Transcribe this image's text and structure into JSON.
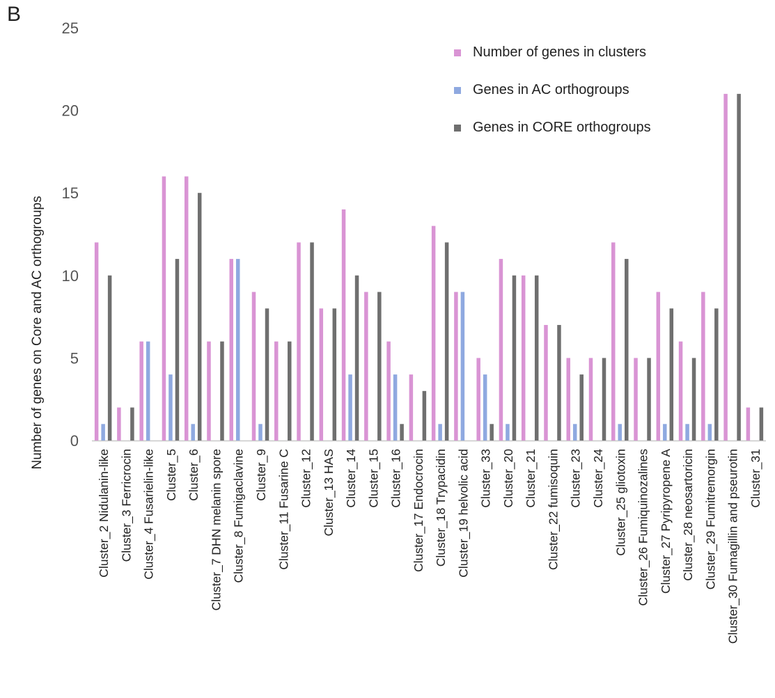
{
  "panel_label": "B",
  "colors": {
    "pink": "#d994d4",
    "blue": "#8fa9e0",
    "gray": "#6f6f6f",
    "axis": "#c8c8c8"
  },
  "chart_data": {
    "type": "bar",
    "title": "",
    "xlabel": "",
    "ylabel": "Number of genes on Core and  AC orthogroups",
    "ylim": [
      0,
      25
    ],
    "yticks": [
      0,
      5,
      10,
      15,
      20,
      25
    ],
    "grid": false,
    "legend_position": "top-right",
    "categories": [
      "Cluster_2 Nidulanin-like",
      "Cluster_3 Ferricrocin",
      "Cluster_4 Fusarielin-like",
      "Cluster_5",
      "Cluster_6",
      "Cluster_7 DHN melanin spore",
      "Cluster_8 Fumigaclavine",
      "Cluster_9",
      "Cluster_11 Fusarine C",
      "Cluster_12",
      "Cluster_13 HAS",
      "Cluster_14",
      "Cluster_15",
      "Cluster_16",
      "Cluster_17 Endocrocin",
      "Cluster_18 Trypacidin",
      "Cluster_19 helvolic acid",
      "Cluster_33",
      "Cluster_20",
      "Cluster_21",
      "Cluster_22 fumisoquin",
      "Cluster_23",
      "Cluster_24",
      "Cluster_25  gliotoxin",
      "Cluster_26 Fumiquinozalines",
      "Cluster_27  Pyripyropene A",
      "Cluster_28 neosartoricin",
      "Cluster_29 Fumitremorgin",
      "Cluster_30 Fumagillin and pseurotin",
      "Cluster_31"
    ],
    "series": [
      {
        "name": "Number of genes in clusters",
        "color": "#d994d4",
        "values": [
          12,
          2,
          6,
          16,
          16,
          6,
          11,
          9,
          6,
          12,
          8,
          14,
          9,
          6,
          4,
          13,
          9,
          5,
          11,
          10,
          7,
          5,
          5,
          12,
          5,
          9,
          6,
          9,
          21,
          2
        ]
      },
      {
        "name": "Genes in AC orthogroups",
        "color": "#8fa9e0",
        "values": [
          1,
          0,
          6,
          4,
          1,
          0,
          11,
          1,
          0,
          0,
          0,
          4,
          0,
          4,
          0,
          1,
          9,
          4,
          1,
          0,
          0,
          1,
          0,
          1,
          0,
          1,
          1,
          1,
          0,
          0
        ]
      },
      {
        "name": "Genes in CORE orthogroups",
        "color": "#6f6f6f",
        "values": [
          10,
          2,
          0,
          11,
          15,
          6,
          0,
          8,
          6,
          12,
          8,
          10,
          9,
          1,
          3,
          12,
          0,
          1,
          10,
          10,
          7,
          4,
          5,
          11,
          5,
          8,
          5,
          8,
          21,
          2
        ]
      }
    ]
  }
}
